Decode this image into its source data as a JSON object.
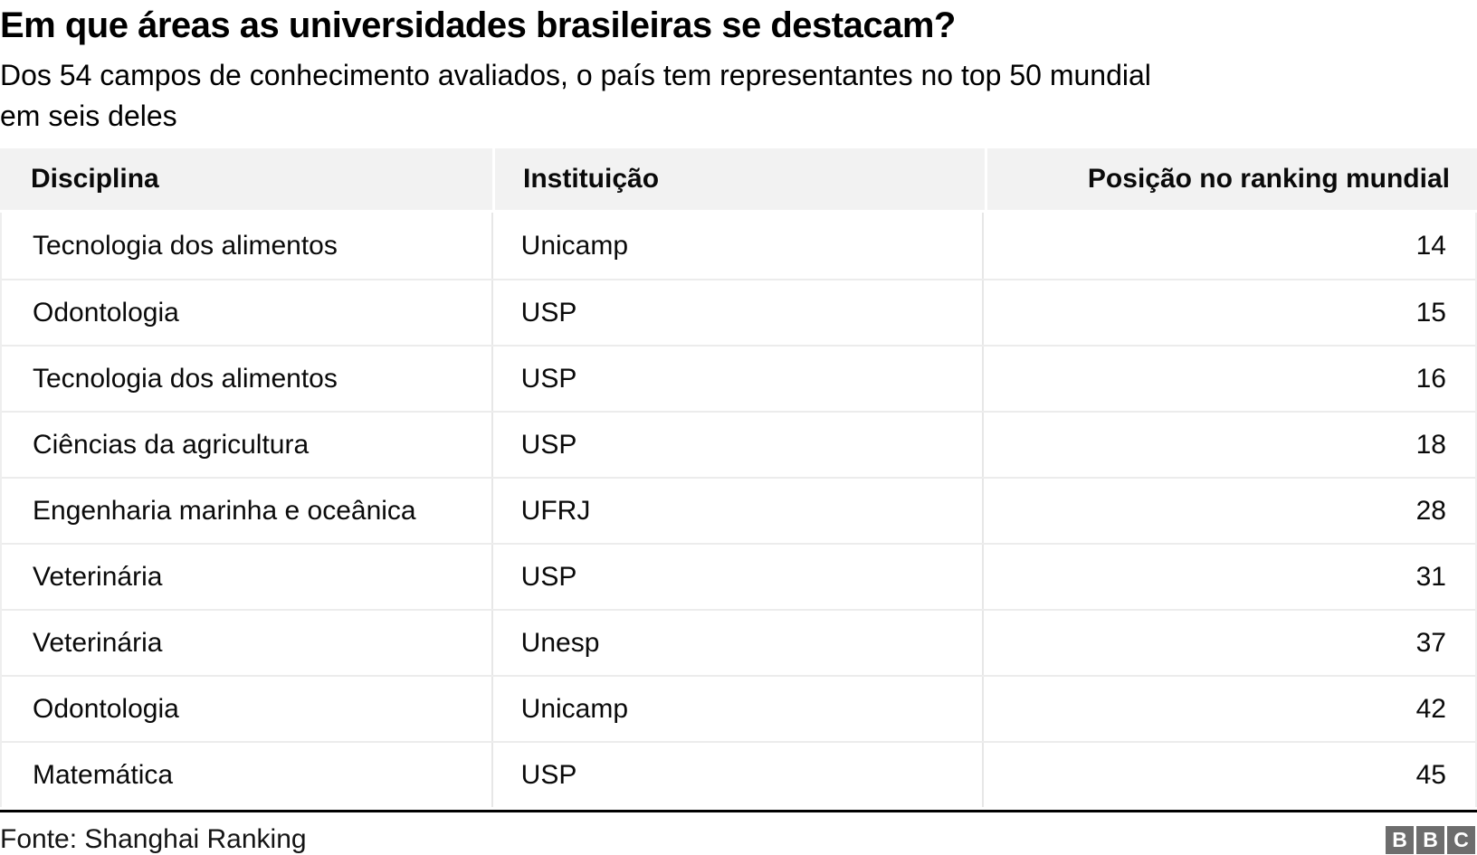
{
  "header": {
    "title": "Em que áreas as universidades brasileiras se destacam?",
    "subtitle": "Dos 54 campos de conhecimento avaliados, o país tem representantes no top 50 mundial\nem seis deles"
  },
  "table": {
    "columns": [
      "Disciplina",
      "Instituição",
      "Posição no ranking mundial"
    ],
    "rows": [
      {
        "disciplina": "Tecnologia dos alimentos",
        "instituicao": "Unicamp",
        "posicao": "14"
      },
      {
        "disciplina": "Odontologia",
        "instituicao": "USP",
        "posicao": "15"
      },
      {
        "disciplina": "Tecnologia dos alimentos",
        "instituicao": "USP",
        "posicao": "16"
      },
      {
        "disciplina": "Ciências da agricultura",
        "instituicao": "USP",
        "posicao": "18"
      },
      {
        "disciplina": "Engenharia marinha e oceânica",
        "instituicao": "UFRJ",
        "posicao": "28"
      },
      {
        "disciplina": "Veterinária",
        "instituicao": "USP",
        "posicao": "31"
      },
      {
        "disciplina": "Veterinária",
        "instituicao": "Unesp",
        "posicao": "37"
      },
      {
        "disciplina": "Odontologia",
        "instituicao": "Unicamp",
        "posicao": "42"
      },
      {
        "disciplina": "Matemática",
        "instituicao": "USP",
        "posicao": "45"
      }
    ]
  },
  "footer": {
    "source": "Fonte: Shanghai Ranking",
    "logo_letters": [
      "B",
      "B",
      "C"
    ]
  },
  "colors": {
    "header_bg": "#f2f2f2",
    "row_divider": "#ececec",
    "column_divider": "#e7e7e7",
    "footer_rule": "#000000",
    "logo_gray": "#6d6d6d",
    "text": "#000000"
  },
  "chart_data": {
    "type": "table",
    "title": "Em que áreas as universidades brasileiras se destacam?",
    "subtitle": "Dos 54 campos de conhecimento avaliados, o país tem representantes no top 50 mundial em seis deles",
    "columns": [
      "Disciplina",
      "Instituição",
      "Posição no ranking mundial"
    ],
    "rows": [
      [
        "Tecnologia dos alimentos",
        "Unicamp",
        14
      ],
      [
        "Odontologia",
        "USP",
        15
      ],
      [
        "Tecnologia dos alimentos",
        "USP",
        16
      ],
      [
        "Ciências da agricultura",
        "USP",
        18
      ],
      [
        "Engenharia marinha e oceânica",
        "UFRJ",
        28
      ],
      [
        "Veterinária",
        "USP",
        31
      ],
      [
        "Veterinária",
        "Unesp",
        37
      ],
      [
        "Odontologia",
        "Unicamp",
        42
      ],
      [
        "Matemática",
        "USP",
        45
      ]
    ],
    "source": "Fonte: Shanghai Ranking",
    "layout": {
      "column_alignment": [
        "left",
        "left",
        "right"
      ],
      "header_background": "#f2f2f2"
    }
  }
}
